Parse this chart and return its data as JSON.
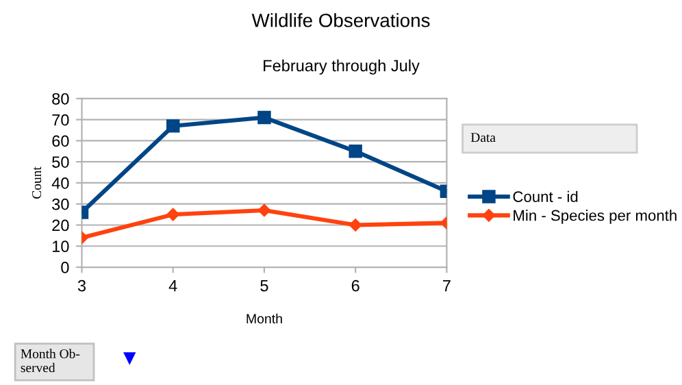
{
  "chart_data": {
    "type": "line",
    "title": "Wildlife Observations",
    "subtitle": "February through July",
    "xlabel": "Month",
    "ylabel": "Count",
    "legend_title": "Data",
    "categories": [
      "3",
      "4",
      "5",
      "6",
      "7"
    ],
    "series": [
      {
        "name": "Count - id",
        "color": "#004586",
        "marker": "square",
        "values": [
          26,
          67,
          71,
          55,
          36
        ]
      },
      {
        "name": "Min - Species per month",
        "color": "#ff420e",
        "marker": "diamond",
        "values": [
          14,
          25,
          27,
          20,
          21
        ]
      }
    ],
    "ylim": [
      0,
      80
    ],
    "yticks": [
      0,
      10,
      20,
      30,
      40,
      50,
      60,
      70,
      80
    ],
    "grid": "y",
    "legend": "right",
    "line_style": "solid",
    "annotations": [
      "Month Ob-\nserved"
    ]
  }
}
